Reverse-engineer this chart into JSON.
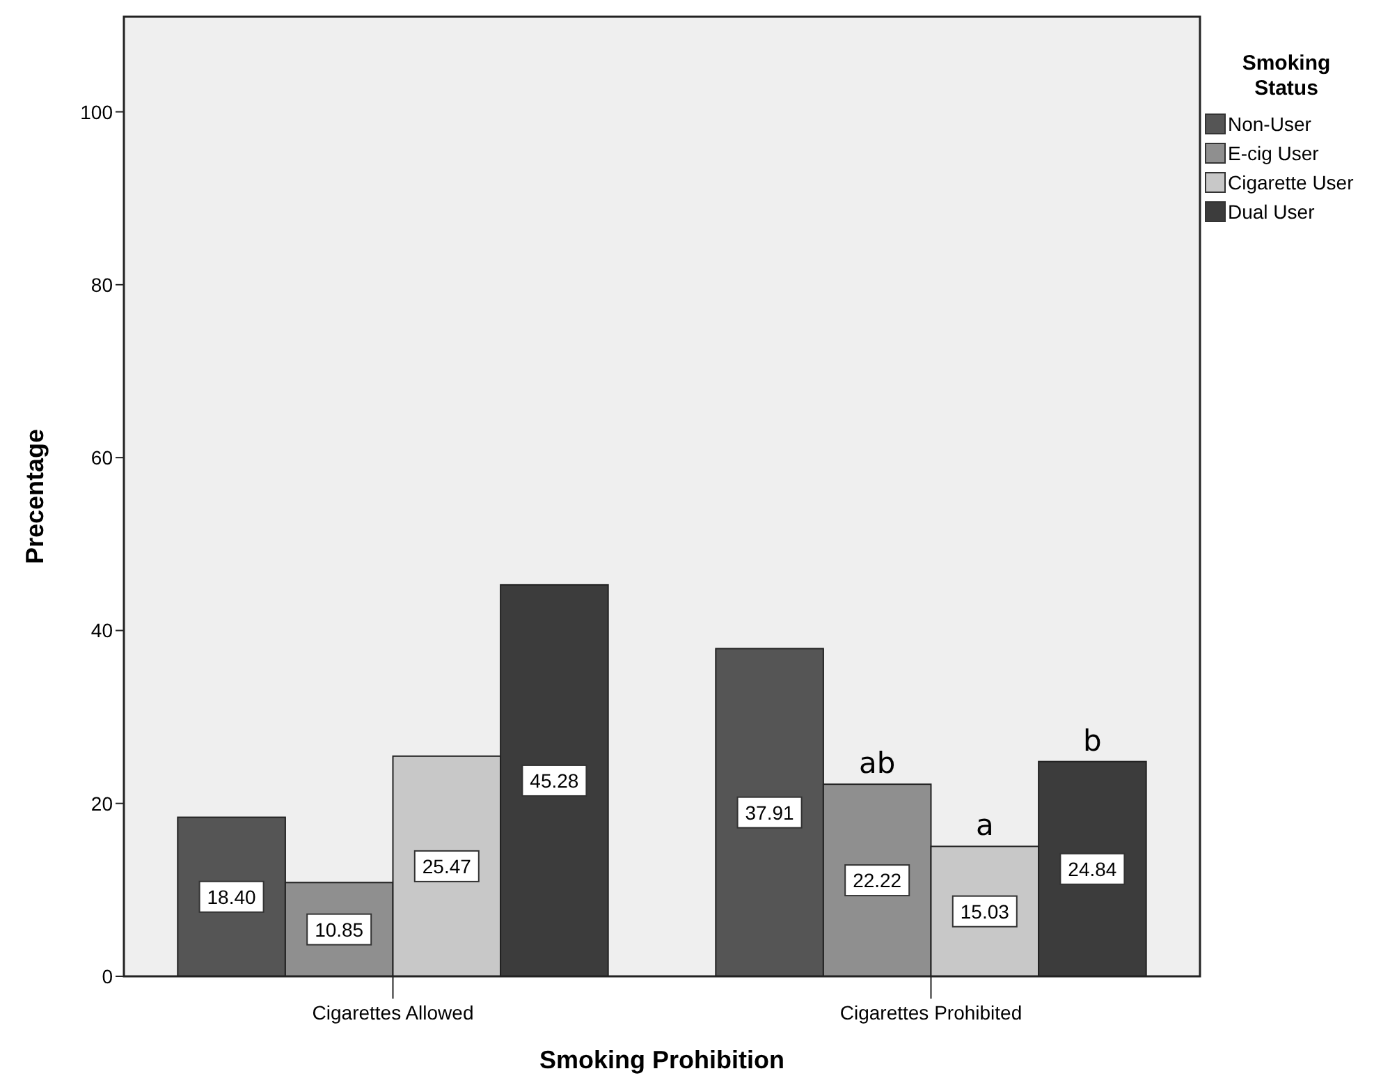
{
  "chart_data": {
    "type": "bar",
    "xlabel": "Smoking Prohibition",
    "ylabel": "Precentage",
    "legend_title": "Smoking Status",
    "legend": "top right",
    "categories": [
      "Cigarettes Allowed",
      "Cigarettes Prohibited"
    ],
    "series": [
      {
        "name": "Non-User",
        "color": "#555555",
        "values": [
          18.4,
          37.91
        ],
        "value_labels": [
          "18.40",
          "37.91"
        ]
      },
      {
        "name": "E-cig User",
        "color": "#8f8f8f",
        "values": [
          10.85,
          22.22
        ],
        "value_labels": [
          "10.85",
          "22.22"
        ]
      },
      {
        "name": "Cigarette User",
        "color": "#c8c8c8",
        "values": [
          25.47,
          15.03
        ],
        "value_labels": [
          "25.47",
          "15.03"
        ]
      },
      {
        "name": "Dual User",
        "color": "#3c3c3c",
        "values": [
          45.28,
          24.84
        ],
        "value_labels": [
          "45.28",
          "24.84"
        ]
      }
    ],
    "ylim": [
      0,
      111
    ],
    "yticks": [
      0,
      20,
      40,
      60,
      80,
      100
    ],
    "grid": false,
    "annotations": [
      {
        "text": "ab",
        "x": "Cigarettes Prohibited",
        "y": 22.22
      },
      {
        "text": "a",
        "x": "Cigarettes Prohibited",
        "y": 15.03
      },
      "b"
    ]
  }
}
